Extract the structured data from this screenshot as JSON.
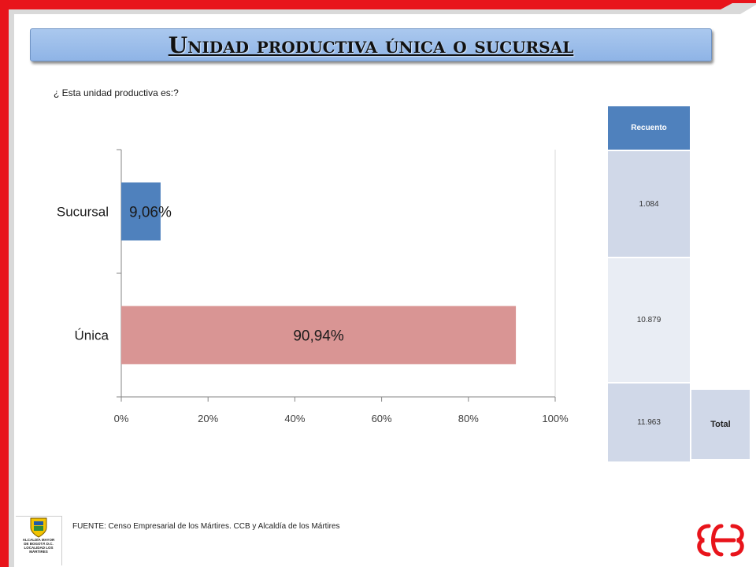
{
  "slide": {
    "title": "Unidad productiva única o sucursal",
    "question": "¿ Esta unidad productiva  es:?",
    "source": "FUENTE:  Censo Empresarial de los Mártires. CCB y Alcaldía de los Mártires"
  },
  "logo_left": {
    "line1": "ALCALDÍA MAYOR",
    "line2": "DE BOGOTÁ D.C.",
    "line3": "LOCALIDAD LOS MÁRTIRES"
  },
  "table": {
    "header": "Recuento",
    "rows": [
      "1.084",
      "10.879",
      "11.963"
    ],
    "total_label": "Total"
  },
  "colors": {
    "frame_red": "#e8141b",
    "frame_gray": "#d9d9d9",
    "title_blue": "#9fbde9",
    "sucursal_bar": "#4f81bd",
    "unica_bar": "#d99594",
    "table_header": "#4f81bd",
    "table_cell": "#d0d8e8"
  },
  "chart_data": {
    "type": "bar",
    "orientation": "horizontal",
    "categories": [
      "Sucursal",
      "Única"
    ],
    "values": [
      9.06,
      90.94
    ],
    "data_labels": [
      "9,06%",
      "90,94%"
    ],
    "bar_colors": [
      "#4f81bd",
      "#d99594"
    ],
    "xlim": [
      0,
      100
    ],
    "x_ticks": [
      "0%",
      "20%",
      "40%",
      "60%",
      "80%",
      "100%"
    ],
    "title": "",
    "xlabel": "",
    "ylabel": "",
    "grid": false,
    "legend": "none"
  }
}
